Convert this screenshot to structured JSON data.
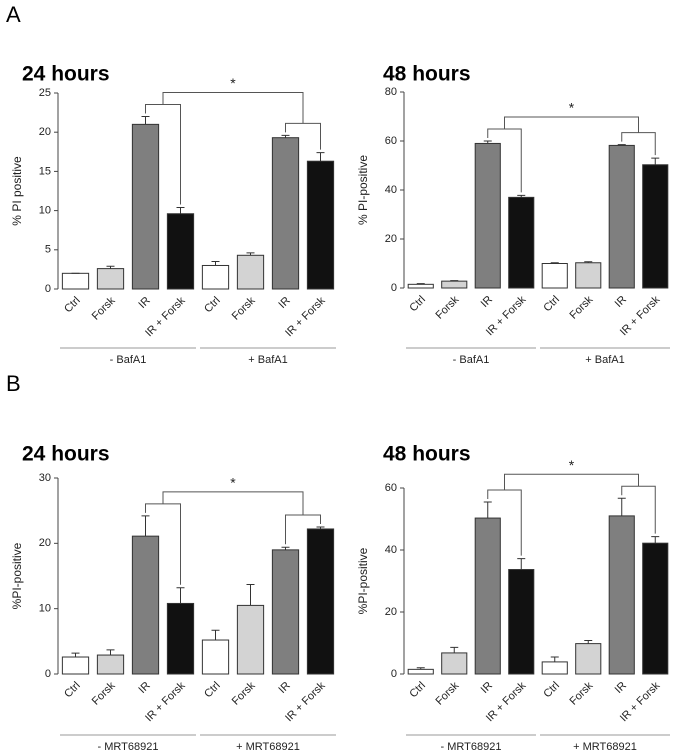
{
  "panels": [
    "A",
    "B"
  ],
  "chart_data": [
    {
      "type": "bar",
      "title": "24 hours",
      "ylabel": "% PI positive",
      "categories": [
        "Ctrl",
        "Forsk",
        "IR",
        "IR + Forsk",
        "Ctrl",
        "Forsk",
        "IR",
        "IR + Forsk"
      ],
      "values": [
        2.0,
        2.6,
        21.0,
        9.6,
        3.0,
        4.3,
        19.3,
        16.3
      ],
      "errors": [
        0,
        0.3,
        1.0,
        0.8,
        0.5,
        0.3,
        0.3,
        1.1
      ],
      "colors": [
        "#ffffff",
        "#d3d3d3",
        "#7f7f7f",
        "#111111",
        "#ffffff",
        "#d3d3d3",
        "#7f7f7f",
        "#111111"
      ],
      "ylim": [
        0,
        25
      ],
      "yticks": [
        0,
        5,
        10,
        15,
        20,
        25
      ],
      "groups": [
        "- BafA1",
        "+ BafA1"
      ],
      "annotation": "*"
    },
    {
      "type": "bar",
      "title": "48 hours",
      "ylabel": "% PI-positive",
      "categories": [
        "Ctrl",
        "Forsk",
        "IR",
        "IR + Forsk",
        "Ctrl",
        "Forsk",
        "IR",
        "IR + Forsk"
      ],
      "values": [
        1.5,
        2.8,
        59,
        37,
        10,
        10.3,
        58.2,
        50.3
      ],
      "errors": [
        0.3,
        0.2,
        1.0,
        0.8,
        0.3,
        0.4,
        0.3,
        2.7
      ],
      "colors": [
        "#ffffff",
        "#d3d3d3",
        "#7f7f7f",
        "#111111",
        "#ffffff",
        "#d3d3d3",
        "#7f7f7f",
        "#111111"
      ],
      "ylim": [
        0,
        80
      ],
      "yticks": [
        0,
        20,
        40,
        60,
        80
      ],
      "groups": [
        "- BafA1",
        "+ BafA1"
      ],
      "annotation": "*"
    },
    {
      "type": "bar",
      "title": "24 hours",
      "ylabel": "%PI-positive",
      "categories": [
        "Ctrl",
        "Forsk",
        "IR",
        "IR + Forsk",
        "Ctrl",
        "Forsk",
        "IR",
        "IR + Forsk"
      ],
      "values": [
        2.6,
        2.9,
        21.1,
        10.8,
        5.2,
        10.5,
        19.0,
        22.2
      ],
      "errors": [
        0.6,
        0.8,
        3.1,
        2.4,
        1.5,
        3.2,
        0.4,
        0.3
      ],
      "colors": [
        "#ffffff",
        "#d3d3d3",
        "#7f7f7f",
        "#111111",
        "#ffffff",
        "#d3d3d3",
        "#7f7f7f",
        "#111111"
      ],
      "ylim": [
        0,
        30
      ],
      "yticks": [
        0,
        10,
        20,
        30
      ],
      "groups": [
        "- MRT68921",
        "+ MRT68921"
      ],
      "annotation": "*"
    },
    {
      "type": "bar",
      "title": "48 hours",
      "ylabel": "%PI-positive",
      "categories": [
        "Ctrl",
        "Forsk",
        "IR",
        "IR + Forsk",
        "Ctrl",
        "Forsk",
        "IR",
        "IR + Forsk"
      ],
      "values": [
        1.5,
        6.8,
        50.3,
        33.7,
        3.9,
        9.8,
        51.0,
        42.2
      ],
      "errors": [
        0.5,
        1.8,
        5.2,
        3.5,
        1.6,
        1.0,
        5.7,
        2.1
      ],
      "colors": [
        "#ffffff",
        "#d3d3d3",
        "#7f7f7f",
        "#111111",
        "#ffffff",
        "#d3d3d3",
        "#7f7f7f",
        "#111111"
      ],
      "ylim": [
        0,
        60
      ],
      "yticks": [
        0,
        20,
        40,
        60
      ],
      "groups": [
        "- MRT68921",
        "+ MRT68921"
      ],
      "annotation": "*"
    }
  ]
}
